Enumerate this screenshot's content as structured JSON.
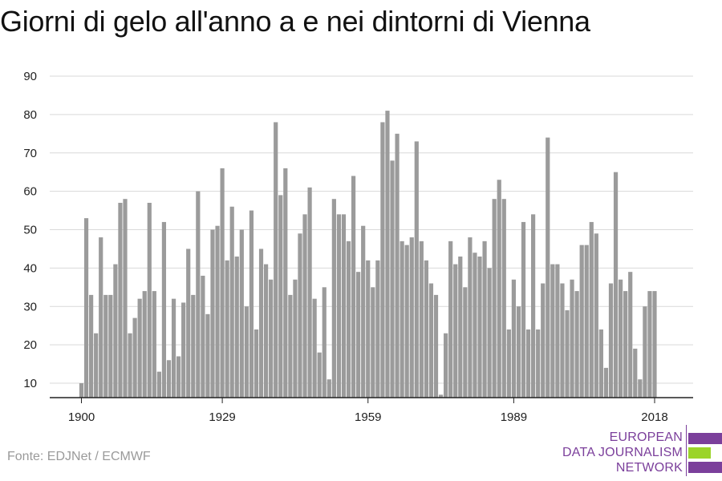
{
  "title": "Giorni di gelo all'anno a e nei dintorni di Vienna",
  "source": "Fonte: EDJNet / ECMWF",
  "logo": {
    "lines": [
      "EUROPEAN",
      "DATA JOURNALISM",
      "NETWORK"
    ],
    "colors": {
      "purple": "#7b3f9b",
      "green": "#9bd42a"
    }
  },
  "colors": {
    "bar": "#9b9b9b",
    "grid": "#d9d9d9",
    "axis": "#222222"
  },
  "chart_data": {
    "type": "bar",
    "title": "Giorni di gelo all'anno a e nei dintorni di Vienna",
    "xlabel": "",
    "ylabel": "",
    "x_start": 1900,
    "x_ticks": [
      1900,
      1929,
      1959,
      1989,
      2018
    ],
    "y_ticks": [
      10,
      20,
      30,
      40,
      50,
      60,
      70,
      80,
      90
    ],
    "ylim": [
      6,
      92
    ],
    "grid": true,
    "values": [
      10,
      53,
      33,
      23,
      48,
      33,
      33,
      41,
      57,
      58,
      23,
      27,
      32,
      34,
      57,
      34,
      13,
      52,
      16,
      32,
      17,
      31,
      45,
      33,
      60,
      38,
      28,
      50,
      51,
      66,
      42,
      56,
      43,
      50,
      30,
      55,
      24,
      45,
      41,
      37,
      78,
      59,
      66,
      33,
      37,
      49,
      54,
      61,
      32,
      18,
      35,
      11,
      58,
      54,
      54,
      47,
      64,
      39,
      51,
      42,
      35,
      42,
      78,
      81,
      68,
      75,
      47,
      46,
      48,
      73,
      47,
      42,
      36,
      33,
      7,
      23,
      47,
      41,
      43,
      35,
      48,
      44,
      43,
      47,
      40,
      58,
      63,
      58,
      24,
      37,
      30,
      52,
      24,
      54,
      24,
      36,
      74,
      41,
      41,
      36,
      29,
      37,
      34,
      46,
      46,
      52,
      49,
      24,
      14,
      36,
      65,
      37,
      34,
      39,
      19,
      11,
      30,
      34,
      34
    ]
  }
}
